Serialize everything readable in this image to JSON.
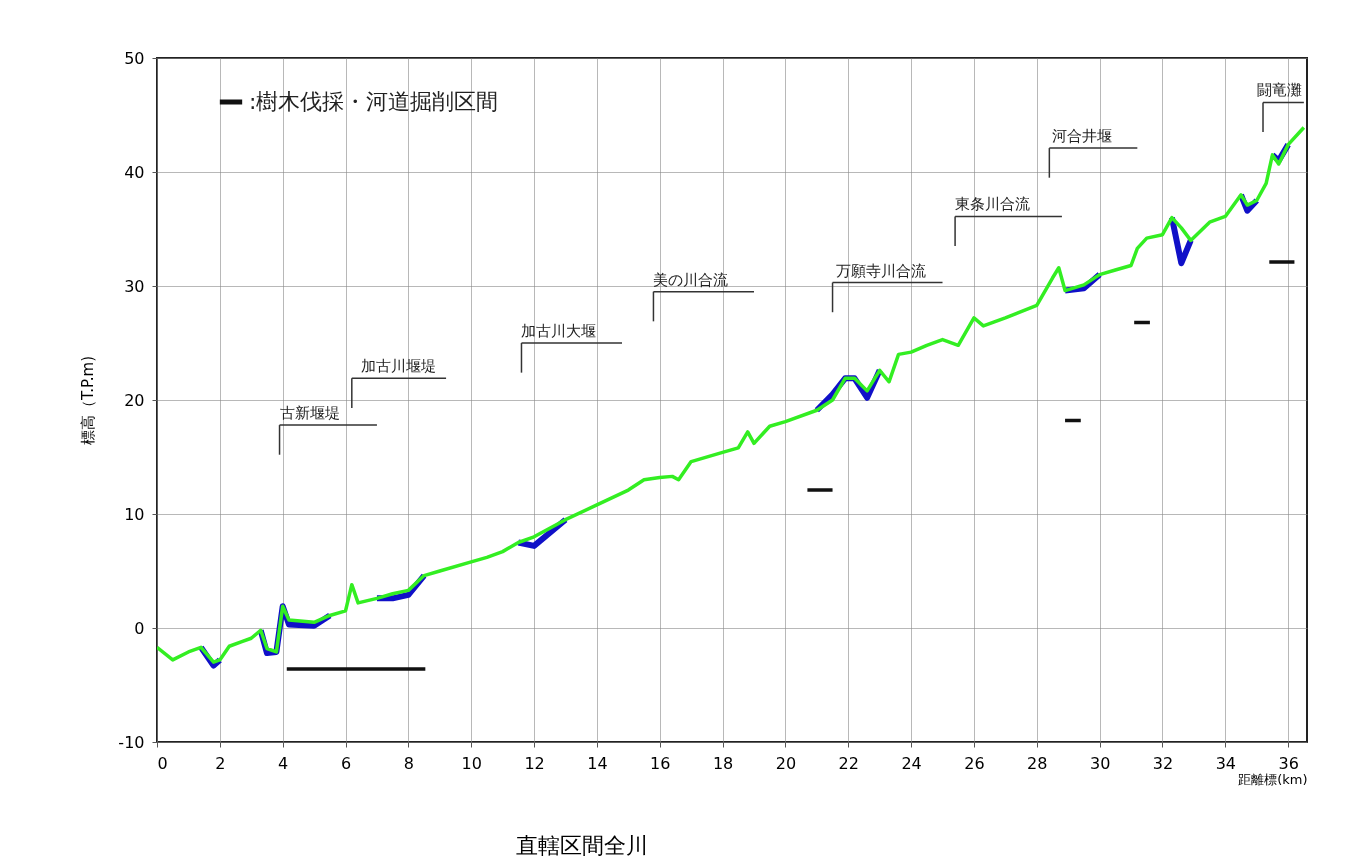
{
  "chart_data": {
    "type": "line",
    "title": "直轄区間全川",
    "xlabel": "距離標(km)",
    "ylabel": "標高（T.P.m)",
    "x": [
      0,
      0.5,
      1.0,
      1.4,
      1.8,
      2.0,
      2.3,
      2.7,
      3.0,
      3.3,
      3.5,
      3.8,
      4.0,
      4.2,
      5.0,
      5.5,
      6.0,
      6.2,
      6.4,
      7.0,
      7.5,
      8.0,
      8.5,
      9.0,
      10.0,
      10.5,
      11.0,
      11.5,
      12.0,
      13.0,
      14.0,
      15.0,
      15.5,
      16.0,
      16.4,
      16.6,
      17.0,
      18.0,
      18.5,
      18.8,
      19.0,
      19.5,
      20.0,
      21.0,
      21.5,
      21.9,
      22.2,
      22.6,
      23.0,
      23.3,
      23.6,
      24.0,
      24.5,
      25.0,
      25.5,
      26.0,
      26.3,
      27.0,
      28.0,
      28.5,
      28.7,
      28.9,
      29.5,
      30.0,
      30.5,
      31.0,
      31.2,
      31.5,
      32.0,
      32.3,
      32.6,
      32.9,
      33.5,
      34.0,
      34.5,
      34.7,
      35.0,
      35.3,
      35.5,
      35.7,
      36.0,
      36.5
    ],
    "series": [
      {
        "color": "#1010c8",
        "values": [
          null,
          null,
          null,
          -1.7,
          -3.3,
          -2.8,
          null,
          null,
          null,
          -0.2,
          -2.2,
          -2.1,
          1.9,
          0.3,
          0.2,
          1.1,
          null,
          null,
          null,
          2.6,
          2.6,
          2.9,
          4.6,
          null,
          null,
          null,
          null,
          7.5,
          7.2,
          9.5,
          null,
          null,
          null,
          null,
          null,
          null,
          null,
          null,
          null,
          null,
          null,
          null,
          null,
          19.1,
          20.5,
          21.9,
          21.9,
          20.2,
          22.6,
          null,
          null,
          null,
          null,
          null,
          null,
          null,
          null,
          null,
          null,
          null,
          null,
          29.6,
          29.8,
          31.0,
          null,
          null,
          null,
          null,
          null,
          36.0,
          32.0,
          34.0,
          null,
          null,
          38.0,
          36.6,
          37.5,
          null,
          41.5,
          41.0,
          42.4,
          null
        ]
      },
      {
        "color": "#33ee22",
        "values": [
          -1.7,
          -2.8,
          -2.1,
          -1.7,
          -3.0,
          -2.8,
          -1.6,
          -1.2,
          -0.9,
          -0.2,
          -1.8,
          -2.1,
          1.9,
          0.7,
          0.5,
          1.1,
          1.5,
          3.8,
          2.2,
          2.6,
          3.0,
          3.3,
          4.6,
          5.0,
          5.8,
          6.2,
          6.7,
          7.5,
          8.0,
          9.5,
          10.8,
          12.1,
          13.0,
          13.2,
          13.3,
          13.0,
          14.6,
          15.4,
          15.8,
          17.2,
          16.2,
          17.7,
          18.1,
          19.1,
          20.0,
          21.9,
          21.9,
          20.8,
          22.6,
          21.6,
          24.0,
          24.2,
          24.8,
          25.3,
          24.8,
          27.2,
          26.5,
          27.2,
          28.3,
          30.7,
          31.6,
          29.6,
          30.1,
          31.0,
          31.4,
          31.8,
          33.3,
          34.2,
          34.5,
          36.0,
          35.1,
          34.0,
          35.6,
          36.1,
          38.0,
          37.1,
          37.5,
          39.0,
          41.5,
          40.7,
          42.4,
          43.9
        ]
      },
      {
        "name": ":樹木伐採・河道掘削区間",
        "color": "#111111",
        "x": [
          4.13,
          8.54,
          null,
          20.7,
          21.5,
          null,
          28.9,
          29.4,
          null,
          31.1,
          31.6,
          null,
          35.4,
          36.2
        ],
        "values": [
          -3.6,
          -3.6,
          null,
          12.1,
          12.1,
          null,
          18.2,
          18.2,
          null,
          26.8,
          26.8,
          null,
          32.1,
          32.1
        ]
      }
    ],
    "xlim": [
      0,
      36.6
    ],
    "xticks": [
      0,
      2,
      4,
      6,
      8,
      10,
      12,
      14,
      16,
      18,
      20,
      22,
      24,
      26,
      28,
      30,
      32,
      34,
      36
    ],
    "ylim": [
      -10,
      50
    ],
    "yticks": [
      -10,
      0,
      10,
      20,
      30,
      40,
      50
    ],
    "grid": true,
    "legend": "top left",
    "marker": "none",
    "line_style": "solid",
    "annotations": [
      "古新堰堤",
      "加古川堰堤",
      "加古川大堰",
      "美の川合流",
      "万願寺川合流",
      "東条川合流",
      "河合井堰",
      "闘竜灘"
    ]
  }
}
